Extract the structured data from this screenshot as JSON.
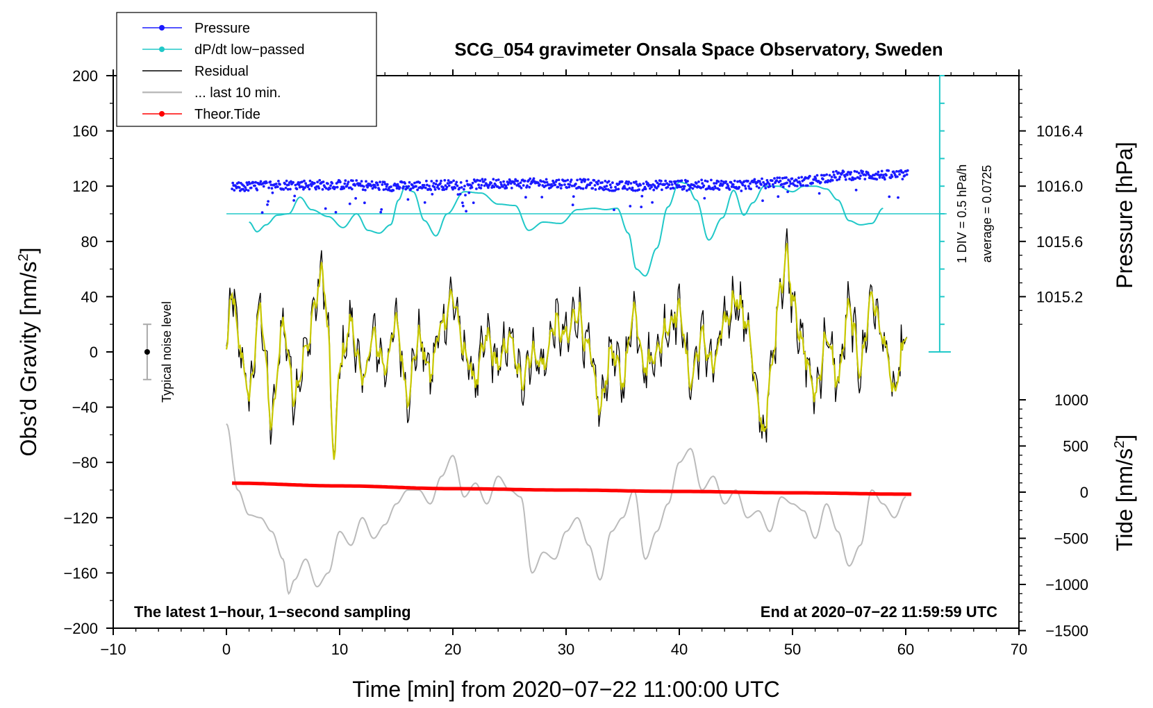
{
  "chart_data": {
    "type": "line",
    "title": "SCG_054 gravimeter Onsala Space Observatory, Sweden",
    "xlabel": "Time [min] from 2020−07−22 11:00:00 UTC",
    "ylabel": "Obs’d Gravity [nm/s2]",
    "ylabel_main": "Obs’d Gravity [nm/s",
    "ylabel_sup": "2",
    "ylabel_close": "]",
    "xlim": [
      -10,
      70
    ],
    "ylim": [
      -200,
      200
    ],
    "x_ticks": [
      "−10",
      "0",
      "10",
      "20",
      "30",
      "40",
      "50",
      "60",
      "70"
    ],
    "y_ticks": [
      "200",
      "160",
      "120",
      "80",
      "40",
      "0",
      "−40",
      "−80",
      "−120",
      "−160",
      "−200"
    ],
    "pressure_axis": {
      "label": "Pressure [hPa]",
      "ticks": [
        "1016.4",
        "1016.0",
        "1015.6",
        "1015.2"
      ],
      "tick_gravity_positions": [
        160,
        120,
        80,
        40
      ]
    },
    "tide_axis": {
      "label_main": "Tide [nm/s",
      "label_sup": "2",
      "label_close": "]",
      "ticks": [
        "1000",
        "500",
        "0",
        "−500",
        "−1000",
        "−1500"
      ],
      "tick_values": [
        1000,
        500,
        0,
        -500,
        -1000,
        -1500
      ]
    },
    "dpdt_scale": {
      "div_label": "1 DIV = 0.5 hPa/h",
      "average_label": "average = 0.0725",
      "x": 63,
      "y_from": 0,
      "y_to": 200,
      "divisions": 10,
      "baseline_y": 100
    },
    "noise_indicator": {
      "label": "Typical noise level",
      "x": -7,
      "y": 0,
      "y_low": -20,
      "y_high": 20
    },
    "corner_left": "The latest 1−hour, 1−second sampling",
    "corner_right": "End at 2020−07−22 11:59:59 UTC",
    "legend": [
      {
        "label": "Pressure",
        "color": "#1a1aff",
        "marker": true
      },
      {
        "label": "dP/dt low−passed",
        "color": "#20c8c8",
        "marker": true
      },
      {
        "label": "Residual",
        "color": "#000000",
        "marker": false
      },
      {
        "label": "... last 10 min.",
        "color": "#bbbbbb",
        "marker": false
      },
      {
        "label": "Theor.Tide",
        "color": "#ff0000",
        "marker": true
      }
    ],
    "series": [
      {
        "name": "Pressure",
        "color": "#1a1aff",
        "x": [
          0,
          5,
          10,
          15,
          20,
          25,
          30,
          35,
          40,
          45,
          50,
          55,
          60
        ],
        "y": [
          119,
          121,
          121,
          120,
          121,
          122,
          122,
          120,
          121,
          121,
          123,
          128,
          128
        ]
      },
      {
        "name": "dP/dt low-passed",
        "color": "#20c8c8",
        "x": [
          2,
          2.7,
          3.5,
          4.5,
          5.5,
          6.5,
          7.5,
          9,
          10.3,
          11.5,
          12.5,
          13.5,
          14.5,
          15.2,
          15.8,
          16.5,
          17.5,
          18.5,
          19.5,
          21,
          22.5,
          24,
          25.5,
          26.7,
          28,
          29.5,
          31,
          32.5,
          33.5,
          34.5,
          35.5,
          36.2,
          37,
          38,
          39,
          40,
          40.6,
          41.5,
          42.6,
          43.8,
          44.8,
          45.7,
          46.5,
          47.5,
          48.7,
          50,
          51,
          52,
          53,
          54,
          55,
          56,
          57,
          58
        ],
        "y": [
          94,
          87,
          92,
          99,
          100,
          112,
          103,
          98,
          90,
          100,
          88,
          86,
          92,
          110,
          120,
          116,
          95,
          84,
          100,
          116,
          115,
          107,
          106,
          88,
          94,
          93,
          103,
          104,
          103,
          104,
          86,
          60,
          55,
          75,
          105,
          123,
          122,
          110,
          81,
          97,
          117,
          99,
          108,
          120,
          120,
          116,
          120,
          120,
          118,
          110,
          95,
          92,
          93,
          104
        ]
      },
      {
        "name": "Residual",
        "color": "#000000",
        "x": [
          0,
          0.5,
          1,
          2,
          3,
          4,
          5,
          6,
          7,
          8,
          8.5,
          9,
          9.5,
          10,
          11,
          12,
          13,
          14,
          15,
          16,
          17,
          18,
          19,
          20,
          21,
          22,
          23,
          24,
          25,
          26,
          27,
          28,
          29,
          30,
          31,
          32,
          33,
          34,
          35,
          36,
          37,
          38,
          39,
          40,
          41,
          42,
          43,
          44,
          45,
          46,
          47,
          47.5,
          48,
          49,
          49.5,
          50,
          51,
          52,
          53,
          54,
          55,
          56,
          57,
          58,
          59,
          60
        ],
        "y": [
          0,
          45,
          10,
          -30,
          30,
          -50,
          20,
          -30,
          0,
          40,
          60,
          10,
          -80,
          -10,
          20,
          -20,
          10,
          -10,
          20,
          -30,
          10,
          -15,
          20,
          40,
          0,
          -20,
          10,
          -10,
          10,
          -20,
          0,
          -10,
          20,
          10,
          30,
          0,
          -40,
          0,
          -20,
          30,
          -10,
          0,
          20,
          30,
          -20,
          10,
          -10,
          20,
          40,
          20,
          -40,
          -60,
          -20,
          50,
          70,
          40,
          0,
          -30,
          10,
          -20,
          30,
          -10,
          40,
          10,
          -30,
          10
        ]
      },
      {
        "name": "last 10 min.",
        "color": "#bbbbbb",
        "x": [
          0,
          1,
          2,
          3,
          4,
          5,
          5.5,
          6,
          7,
          8,
          9,
          10,
          11,
          12,
          13,
          14,
          15,
          16,
          17,
          18,
          19,
          20,
          21,
          22,
          23,
          24,
          25,
          26,
          27,
          28,
          29,
          30,
          31,
          32,
          33,
          34,
          35,
          36,
          37,
          38,
          39,
          40,
          41,
          42,
          43,
          44,
          45,
          46,
          47,
          48,
          49,
          50,
          51,
          52,
          53,
          54,
          55,
          56,
          57,
          58,
          59,
          60
        ],
        "y": [
          -52,
          -100,
          -118,
          -120,
          -130,
          -150,
          -175,
          -165,
          -150,
          -170,
          -160,
          -130,
          -140,
          -120,
          -135,
          -125,
          -110,
          -100,
          -100,
          -110,
          -90,
          -75,
          -105,
          -95,
          -110,
          -90,
          -100,
          -105,
          -160,
          -145,
          -150,
          -130,
          -120,
          -140,
          -165,
          -130,
          -120,
          -100,
          -150,
          -130,
          -110,
          -80,
          -70,
          -100,
          -90,
          -110,
          -100,
          -120,
          -115,
          -130,
          -105,
          -110,
          -115,
          -135,
          -110,
          -130,
          -155,
          -140,
          -100,
          -110,
          -120,
          -105
        ]
      },
      {
        "name": "Theor.Tide",
        "color": "#ff0000",
        "x": [
          0.5,
          10,
          20,
          30,
          40,
          50,
          60.5
        ],
        "y": [
          -95,
          -97,
          -99,
          -100,
          -101,
          -102,
          -103
        ]
      }
    ]
  }
}
